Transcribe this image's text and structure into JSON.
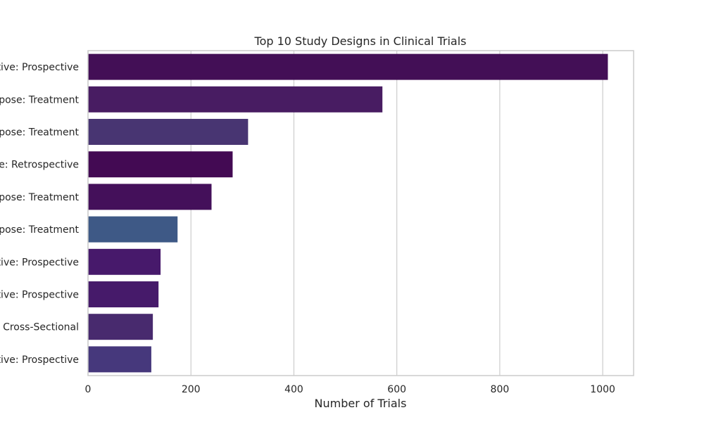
{
  "chart_data": {
    "type": "bar",
    "orientation": "horizontal",
    "title": "Top 10 Study Designs in Clinical Trials",
    "xlabel": "Number of Trials",
    "ylabel": "",
    "xlim": [
      0,
      1060
    ],
    "xticks": [
      0,
      200,
      400,
      600,
      800,
      1000
    ],
    "grid": "vertical",
    "categories": [
      "tive: Prospective",
      "rpose: Treatment",
      "rpose: Treatment",
      "e: Retrospective",
      "rpose: Treatment",
      "rpose: Treatment",
      "tive: Prospective",
      "tive: Prospective",
      "Cross-Sectional",
      "tive: Prospective"
    ],
    "values": [
      1010,
      572,
      311,
      281,
      240,
      174,
      141,
      137,
      126,
      123
    ],
    "colors": [
      "#430f56",
      "#481c62",
      "#483572",
      "#430a53",
      "#44105a",
      "#3e5986",
      "#47196b",
      "#461a6a",
      "#482a6e",
      "#46387c"
    ]
  }
}
